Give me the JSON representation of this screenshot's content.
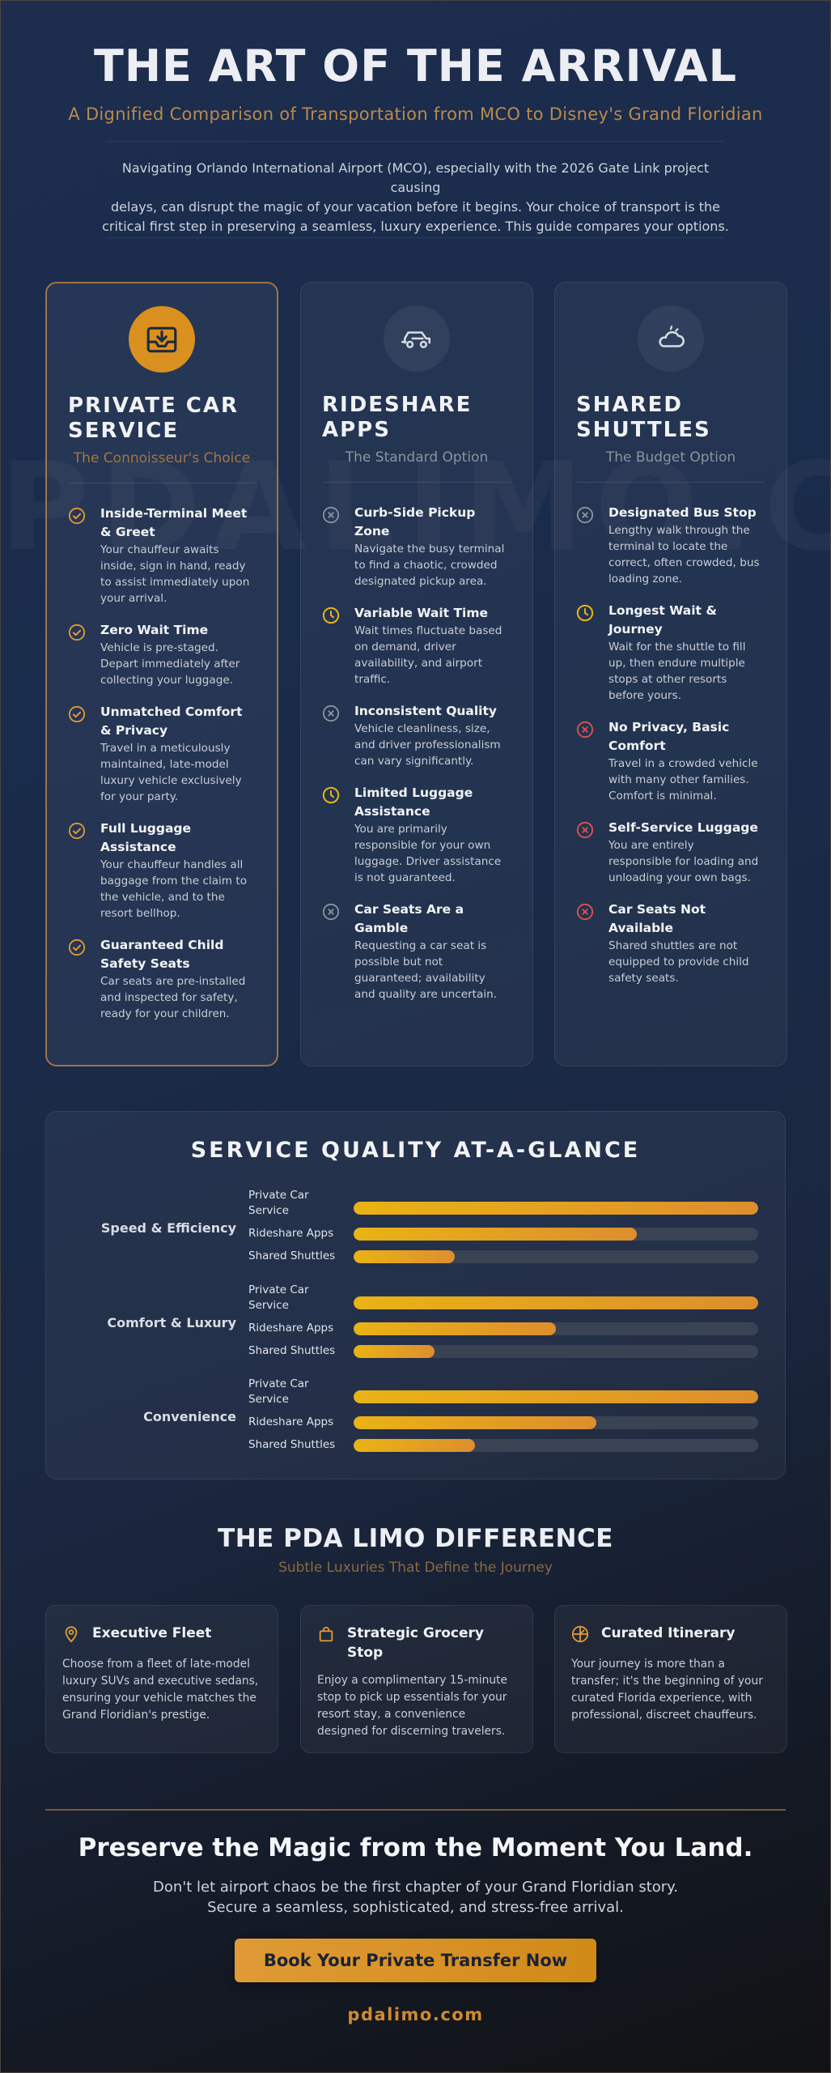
{
  "watermark": "PDALIMO.COM",
  "header": {
    "title": "THE ART OF THE ARRIVAL",
    "subtitle": "A Dignified Comparison of Transportation from MCO to Disney's Grand Floridian",
    "intro_lines": [
      "Navigating Orlando International Airport (MCO), especially with the 2026 Gate Link project causing",
      "delays, can disrupt the magic of your vacation before it begins. Your choice of transport is the",
      "critical first step in preserving a seamless, luxury experience. This guide compares your options."
    ]
  },
  "colors": {
    "accent": "#d9901e",
    "positive": "#e09a36",
    "neutral": "#8c939f",
    "warning": "#e8b317",
    "negative": "#e0514f"
  },
  "cards": [
    {
      "icon": "inbox-tray-icon",
      "title_lines": [
        "PRIVATE CAR",
        "SERVICE"
      ],
      "tagline": "The Connoisseur's Choice",
      "features": [
        {
          "icon": "check-circle-icon",
          "title_lines": [
            "Inside-Terminal Meet",
            "& Greet"
          ],
          "desc_lines": [
            "Your chauffeur awaits",
            "inside, sign in hand, ready",
            "to assist immediately upon",
            "your arrival."
          ]
        },
        {
          "icon": "check-circle-icon",
          "title_lines": [
            "Zero Wait Time"
          ],
          "desc_lines": [
            "Vehicle is pre-staged.",
            "Depart immediately after",
            "collecting your luggage."
          ]
        },
        {
          "icon": "check-circle-icon",
          "title_lines": [
            "Unmatched Comfort",
            "& Privacy"
          ],
          "desc_lines": [
            "Travel in a meticulously",
            "maintained, late-model",
            "luxury vehicle exclusively",
            "for your party."
          ]
        },
        {
          "icon": "check-circle-icon",
          "title_lines": [
            "Full Luggage",
            "Assistance"
          ],
          "desc_lines": [
            "Your chauffeur handles all",
            "baggage from the claim to",
            "the vehicle, and to the",
            "resort bellhop."
          ]
        },
        {
          "icon": "check-circle-icon",
          "title_lines": [
            "Guaranteed Child",
            "Safety Seats"
          ],
          "desc_lines": [
            "Car seats are pre-installed",
            "and inspected for safety,",
            "ready for your children."
          ]
        }
      ]
    },
    {
      "icon": "car-icon",
      "title_lines": [
        "RIDESHARE",
        "APPS"
      ],
      "tagline": "The Standard Option",
      "features": [
        {
          "icon": "x-circle-icon",
          "title_lines": [
            "Curb-Side Pickup",
            "Zone"
          ],
          "desc_lines": [
            "Navigate the busy terminal",
            "to find a chaotic, crowded",
            "designated pickup area."
          ]
        },
        {
          "icon": "clock-icon",
          "title_lines": [
            "Variable Wait Time"
          ],
          "desc_lines": [
            "Wait times fluctuate based",
            "on demand, driver",
            "availability, and airport",
            "traffic."
          ]
        },
        {
          "icon": "x-circle-icon",
          "title_lines": [
            "Inconsistent Quality"
          ],
          "desc_lines": [
            "Vehicle cleanliness, size,",
            "and driver professionalism",
            "can vary significantly."
          ]
        },
        {
          "icon": "clock-icon",
          "title_lines": [
            "Limited Luggage",
            "Assistance"
          ],
          "desc_lines": [
            "You are primarily",
            "responsible for your own",
            "luggage. Driver assistance",
            "is not guaranteed."
          ]
        },
        {
          "icon": "x-circle-icon",
          "title_lines": [
            "Car Seats Are a",
            "Gamble"
          ],
          "desc_lines": [
            "Requesting a car seat is",
            "possible but not",
            "guaranteed; availability",
            "and quality are uncertain."
          ]
        }
      ]
    },
    {
      "icon": "cloud-sun-icon",
      "title_lines": [
        "SHARED",
        "SHUTTLES"
      ],
      "tagline": "The Budget Option",
      "features": [
        {
          "icon": "x-circle-icon",
          "title_lines": [
            "Designated Bus Stop"
          ],
          "desc_lines": [
            "Lengthy walk through the",
            "terminal to locate the",
            "correct, often crowded, bus",
            "loading zone."
          ]
        },
        {
          "icon": "clock-icon",
          "title_lines": [
            "Longest Wait &",
            "Journey"
          ],
          "desc_lines": [
            "Wait for the shuttle to fill",
            "up, then endure multiple",
            "stops at other resorts",
            "before yours."
          ]
        },
        {
          "icon": "x-circle-icon",
          "title_lines": [
            "No Privacy, Basic",
            "Comfort"
          ],
          "desc_lines": [
            "Travel in a crowded vehicle",
            "with many other families.",
            "Comfort is minimal."
          ]
        },
        {
          "icon": "x-circle-icon",
          "title_lines": [
            "Self-Service Luggage"
          ],
          "desc_lines": [
            "You are entirely",
            "responsible for loading and",
            "unloading your own bags."
          ]
        },
        {
          "icon": "x-circle-icon",
          "title_lines": [
            "Car Seats Not",
            "Available"
          ],
          "desc_lines": [
            "Shared shuttles are not",
            "equipped to provide child",
            "safety seats."
          ]
        }
      ]
    }
  ],
  "quality": {
    "title": "SERVICE QUALITY AT-A-GLANCE",
    "groups": [
      {
        "category": "Speed & Efficiency",
        "rows": [
          {
            "label_lines": [
              "Private Car",
              "Service"
            ],
            "percent": 100
          },
          {
            "label_lines": [
              "Rideshare Apps"
            ],
            "percent": 70
          },
          {
            "label_lines": [
              "Shared Shuttles"
            ],
            "percent": 25
          }
        ]
      },
      {
        "category": "Comfort & Luxury",
        "rows": [
          {
            "label_lines": [
              "Private Car",
              "Service"
            ],
            "percent": 100
          },
          {
            "label_lines": [
              "Rideshare Apps"
            ],
            "percent": 50
          },
          {
            "label_lines": [
              "Shared Shuttles"
            ],
            "percent": 20
          }
        ]
      },
      {
        "category": "Convenience",
        "rows": [
          {
            "label_lines": [
              "Private Car",
              "Service"
            ],
            "percent": 100
          },
          {
            "label_lines": [
              "Rideshare Apps"
            ],
            "percent": 60
          },
          {
            "label_lines": [
              "Shared Shuttles"
            ],
            "percent": 30
          }
        ]
      }
    ]
  },
  "difference": {
    "title": "THE PDA LIMO DIFFERENCE",
    "subtitle": "Subtle Luxuries That Define the Journey",
    "items": [
      {
        "icon": "map-pin-icon",
        "title_lines": [
          "Executive Fleet"
        ],
        "desc_lines": [
          "Choose from a fleet of late-model",
          "luxury SUVs and executive sedans,",
          "ensuring your vehicle matches the",
          "Grand Floridian's prestige."
        ]
      },
      {
        "icon": "shopping-bag-icon",
        "title_lines": [
          "Strategic Grocery",
          "Stop"
        ],
        "desc_lines": [
          "Enjoy a complimentary 15-minute",
          "stop to pick up essentials for your",
          "resort stay, a convenience",
          "designed for discerning travelers."
        ]
      },
      {
        "icon": "compass-icon",
        "title_lines": [
          "Curated Itinerary"
        ],
        "desc_lines": [
          "Your journey is more than a",
          "transfer; it's the beginning of your",
          "curated Florida experience, with",
          "professional, discreet chauffeurs."
        ]
      }
    ]
  },
  "cta": {
    "title": "Preserve the Magic from the Moment You Land.",
    "text_lines": [
      "Don't let airport chaos be the first chapter of your Grand Floridian story.",
      "Secure a seamless, sophisticated, and stress-free arrival."
    ],
    "button_label": "Book Your Private Transfer Now",
    "url": "pdalimo.com"
  }
}
